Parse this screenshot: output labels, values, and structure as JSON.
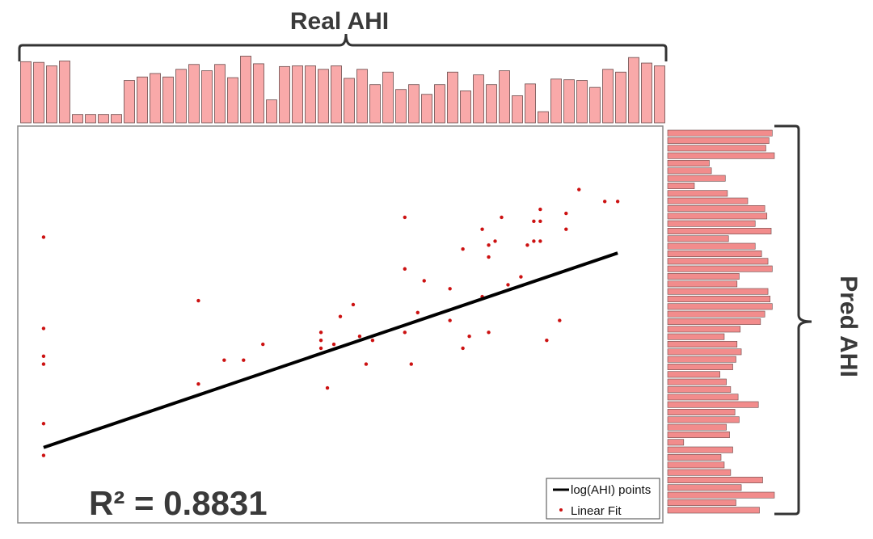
{
  "chart_data": {
    "type": "scatter",
    "top_hist": {
      "title": "Real AHI",
      "type": "bar",
      "values": [
        0.88,
        0.87,
        0.82,
        0.89,
        0.12,
        0.12,
        0.12,
        0.12,
        0.61,
        0.66,
        0.71,
        0.66,
        0.77,
        0.84,
        0.75,
        0.84,
        0.65,
        0.96,
        0.85,
        0.33,
        0.81,
        0.82,
        0.82,
        0.77,
        0.82,
        0.64,
        0.77,
        0.55,
        0.73,
        0.48,
        0.55,
        0.41,
        0.55,
        0.73,
        0.46,
        0.69,
        0.55,
        0.75,
        0.39,
        0.56,
        0.16,
        0.63,
        0.62,
        0.61,
        0.51,
        0.77,
        0.73,
        0.94,
        0.86,
        0.82
      ],
      "color": "#f9a9a9"
    },
    "right_hist": {
      "title": "Pred AHI",
      "type": "bar",
      "values": [
        0.98,
        0.95,
        0.92,
        1.0,
        0.39,
        0.41,
        0.54,
        0.25,
        0.56,
        0.75,
        0.91,
        0.93,
        0.82,
        0.97,
        0.57,
        0.82,
        0.88,
        0.94,
        0.98,
        0.67,
        0.65,
        0.94,
        0.96,
        0.98,
        0.91,
        0.87,
        0.68,
        0.53,
        0.65,
        0.69,
        0.64,
        0.61,
        0.49,
        0.55,
        0.59,
        0.66,
        0.85,
        0.63,
        0.67,
        0.55,
        0.58,
        0.15,
        0.61,
        0.5,
        0.53,
        0.59,
        0.89,
        0.69,
        1.0,
        0.64,
        0.86
      ],
      "color": "#f28c8c"
    },
    "scatter": {
      "points": [
        [
          0.04,
          0.28
        ],
        [
          0.04,
          0.51
        ],
        [
          0.04,
          0.58
        ],
        [
          0.04,
          0.6
        ],
        [
          0.04,
          0.75
        ],
        [
          0.04,
          0.83
        ],
        [
          0.28,
          0.44
        ],
        [
          0.28,
          0.65
        ],
        [
          0.32,
          0.59
        ],
        [
          0.35,
          0.59
        ],
        [
          0.38,
          0.55
        ],
        [
          0.47,
          0.56
        ],
        [
          0.47,
          0.54
        ],
        [
          0.47,
          0.52
        ],
        [
          0.48,
          0.66
        ],
        [
          0.49,
          0.55
        ],
        [
          0.5,
          0.48
        ],
        [
          0.52,
          0.45
        ],
        [
          0.53,
          0.53
        ],
        [
          0.54,
          0.6
        ],
        [
          0.55,
          0.54
        ],
        [
          0.6,
          0.23
        ],
        [
          0.6,
          0.36
        ],
        [
          0.6,
          0.52
        ],
        [
          0.61,
          0.6
        ],
        [
          0.62,
          0.47
        ],
        [
          0.63,
          0.39
        ],
        [
          0.67,
          0.41
        ],
        [
          0.67,
          0.49
        ],
        [
          0.69,
          0.31
        ],
        [
          0.69,
          0.56
        ],
        [
          0.7,
          0.53
        ],
        [
          0.72,
          0.43
        ],
        [
          0.73,
          0.52
        ],
        [
          0.73,
          0.33
        ],
        [
          0.72,
          0.26
        ],
        [
          0.73,
          0.3
        ],
        [
          0.74,
          0.29
        ],
        [
          0.75,
          0.23
        ],
        [
          0.76,
          0.4
        ],
        [
          0.78,
          0.38
        ],
        [
          0.79,
          0.3
        ],
        [
          0.8,
          0.24
        ],
        [
          0.8,
          0.29
        ],
        [
          0.81,
          0.24
        ],
        [
          0.81,
          0.21
        ],
        [
          0.81,
          0.29
        ],
        [
          0.82,
          0.54
        ],
        [
          0.84,
          0.49
        ],
        [
          0.85,
          0.22
        ],
        [
          0.85,
          0.26
        ],
        [
          0.87,
          0.16
        ],
        [
          0.91,
          0.19
        ],
        [
          0.93,
          0.19
        ]
      ],
      "fit_line": {
        "start": [
          0.04,
          0.81
        ],
        "end": [
          0.93,
          0.32
        ]
      },
      "point_color": "#cc1111",
      "line_color": "#000000"
    },
    "annotation": "R² = 0.8831",
    "legend": {
      "placement": "bottom-right",
      "entries": [
        {
          "label": "log(AHI) points",
          "marker": "line"
        },
        {
          "label": "Linear Fit",
          "marker": "dot"
        }
      ]
    },
    "xlabel": "",
    "ylabel": ""
  }
}
